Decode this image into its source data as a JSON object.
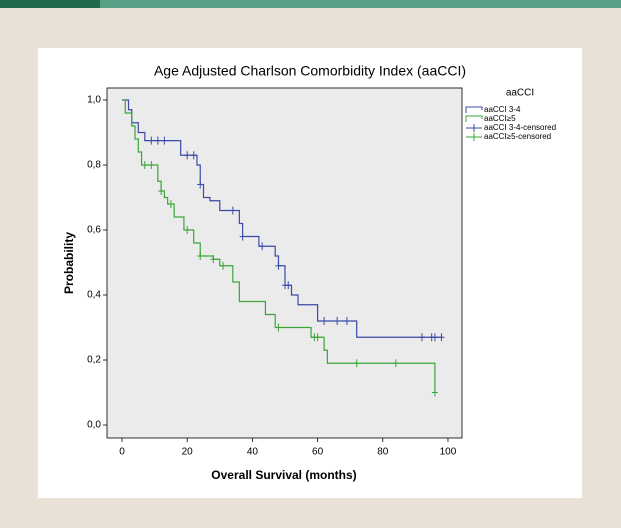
{
  "chart_data": {
    "type": "step",
    "title": "Age Adjusted Charlson Comorbidity Index (aaCCI)",
    "x_label": "Overall Survival (months)",
    "y_label": "Probability",
    "legend_title": "aaCCI",
    "xlim": [
      -4.6,
      104.3
    ],
    "ylim": [
      -0.04,
      1.037
    ],
    "xticks": [
      0,
      20,
      40,
      60,
      80,
      100
    ],
    "yticks": [
      {
        "value": 0,
        "label": "0,0"
      },
      {
        "value": 0.2,
        "label": "0,2"
      },
      {
        "value": 0.4,
        "label": "0,4"
      },
      {
        "value": 0.6,
        "label": "0,6"
      },
      {
        "value": 0.8,
        "label": "0,8"
      },
      {
        "value": 1,
        "label": "1,0"
      }
    ],
    "series": [
      {
        "name": "aaCCI 3-4",
        "color": "#3b4ba6",
        "mark": "line",
        "x": [
          0,
          2,
          3,
          5,
          7,
          18,
          23,
          24,
          25,
          27,
          30,
          36,
          37,
          42,
          47,
          48,
          50,
          52,
          54,
          60,
          72,
          98
        ],
        "values": [
          1.0,
          0.97,
          0.93,
          0.9,
          0.875,
          0.83,
          0.8,
          0.74,
          0.7,
          0.69,
          0.66,
          0.62,
          0.58,
          0.55,
          0.52,
          0.49,
          0.43,
          0.4,
          0.37,
          0.32,
          0.27,
          0.27
        ]
      },
      {
        "name": "aaCCI≥5",
        "color": "#3aa63a",
        "mark": "line",
        "x": [
          0,
          1,
          3,
          4,
          5,
          6,
          11,
          12,
          13,
          14,
          16,
          19,
          22,
          24,
          28,
          30,
          34,
          36,
          44,
          47,
          58,
          62,
          63,
          96
        ],
        "values": [
          1.0,
          0.96,
          0.92,
          0.88,
          0.84,
          0.8,
          0.75,
          0.72,
          0.7,
          0.68,
          0.64,
          0.6,
          0.56,
          0.52,
          0.51,
          0.49,
          0.44,
          0.38,
          0.34,
          0.3,
          0.27,
          0.23,
          0.19,
          0.1
        ]
      },
      {
        "name": "aaCCI 3-4-censored",
        "color": "#3b4ba6",
        "mark": "plus",
        "x": [
          9,
          11,
          13,
          20,
          22,
          24,
          34,
          37,
          43,
          48,
          50,
          51,
          62,
          66,
          69,
          92,
          95,
          96,
          98
        ],
        "values": [
          0.875,
          0.875,
          0.875,
          0.83,
          0.83,
          0.74,
          0.66,
          0.58,
          0.55,
          0.49,
          0.43,
          0.43,
          0.32,
          0.32,
          0.32,
          0.27,
          0.27,
          0.27,
          0.27
        ]
      },
      {
        "name": "aaCCI≥5-censored",
        "color": "#3aa63a",
        "mark": "plus",
        "x": [
          7,
          9,
          12,
          15,
          20,
          24,
          28,
          31,
          48,
          59,
          60,
          72,
          84,
          96
        ],
        "values": [
          0.8,
          0.8,
          0.72,
          0.68,
          0.6,
          0.52,
          0.51,
          0.49,
          0.3,
          0.27,
          0.27,
          0.19,
          0.19,
          0.1
        ]
      }
    ]
  }
}
